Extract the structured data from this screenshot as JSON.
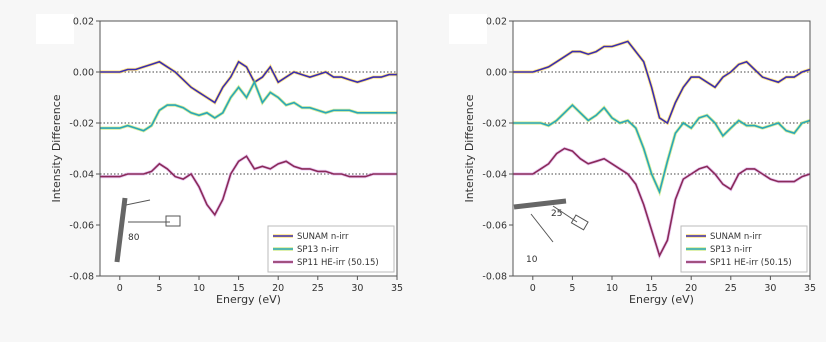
{
  "chart_data": [
    {
      "type": "line",
      "xlabel": "Energy (eV)",
      "ylabel": "Intensity Difference",
      "xlim": [
        -2.5,
        35
      ],
      "ylim": [
        -0.08,
        0.02
      ],
      "xticks": [
        0,
        5,
        10,
        15,
        20,
        25,
        30,
        35
      ],
      "yticks": [
        -0.08,
        -0.06,
        -0.04,
        -0.02,
        0.0,
        0.02
      ],
      "ytick_labels": [
        "-0.08",
        "-0.06",
        "-0.04",
        "-0.02",
        "0.00",
        "0.02"
      ],
      "grid": false,
      "reference_lines": [
        0.0,
        -0.02,
        -0.04
      ],
      "legend_placement": "bottom-right",
      "legend": [
        "SUNAM n-irr",
        "SP13 n-irr",
        "SP11 HE-irr (50.15)"
      ],
      "inset_angle_label": "80",
      "x": [
        -2.5,
        -1,
        0,
        1,
        2,
        3,
        4,
        5,
        6,
        7,
        8,
        9,
        10,
        11,
        12,
        13,
        14,
        15,
        16,
        17,
        18,
        19,
        20,
        21,
        22,
        23,
        24,
        25,
        26,
        27,
        28,
        29,
        30,
        31,
        32,
        33,
        34,
        35
      ],
      "series": [
        {
          "color": "#3a2db0",
          "values": [
            0.0,
            0.0,
            0.0,
            0.001,
            0.001,
            0.002,
            0.003,
            0.004,
            0.002,
            0.0,
            -0.003,
            -0.006,
            -0.008,
            -0.01,
            -0.012,
            -0.006,
            -0.002,
            0.004,
            0.002,
            -0.004,
            -0.002,
            0.002,
            -0.004,
            -0.002,
            0.0,
            -0.001,
            -0.002,
            -0.001,
            0.0,
            -0.002,
            -0.002,
            -0.003,
            -0.004,
            -0.003,
            -0.002,
            -0.002,
            -0.001,
            -0.001
          ]
        },
        {
          "color": "#2aa6b8",
          "values": [
            -0.022,
            -0.022,
            -0.022,
            -0.021,
            -0.022,
            -0.023,
            -0.021,
            -0.015,
            -0.013,
            -0.013,
            -0.014,
            -0.016,
            -0.017,
            -0.016,
            -0.018,
            -0.016,
            -0.01,
            -0.006,
            -0.01,
            -0.004,
            -0.012,
            -0.008,
            -0.01,
            -0.013,
            -0.012,
            -0.014,
            -0.014,
            -0.015,
            -0.016,
            -0.015,
            -0.015,
            -0.015,
            -0.016,
            -0.016,
            -0.016,
            -0.016,
            -0.016,
            -0.016
          ]
        },
        {
          "color": "#8a2a5a",
          "values": [
            -0.041,
            -0.041,
            -0.041,
            -0.04,
            -0.04,
            -0.04,
            -0.039,
            -0.036,
            -0.038,
            -0.041,
            -0.042,
            -0.04,
            -0.045,
            -0.052,
            -0.056,
            -0.05,
            -0.04,
            -0.035,
            -0.033,
            -0.038,
            -0.037,
            -0.038,
            -0.036,
            -0.035,
            -0.037,
            -0.038,
            -0.038,
            -0.039,
            -0.039,
            -0.04,
            -0.04,
            -0.041,
            -0.041,
            -0.041,
            -0.04,
            -0.04,
            -0.04,
            -0.04
          ]
        }
      ]
    },
    {
      "type": "line",
      "xlabel": "Energy (eV)",
      "ylabel": "Intensity Difference",
      "xlim": [
        -2.5,
        35
      ],
      "ylim": [
        -0.08,
        0.02
      ],
      "xticks": [
        0,
        5,
        10,
        15,
        20,
        25,
        30,
        35
      ],
      "yticks": [
        -0.08,
        -0.06,
        -0.04,
        -0.02,
        0.0,
        0.02
      ],
      "ytick_labels": [
        "-0.08",
        "-0.06",
        "-0.04",
        "-0.02",
        "0.00",
        "0.02"
      ],
      "grid": false,
      "reference_lines": [
        0.0,
        -0.02,
        -0.04
      ],
      "legend_placement": "bottom-right",
      "legend": [
        "SUNAM n-irr",
        "SP13 n-irr",
        "SP11 HE-irr (50.15)"
      ],
      "inset_angle_label": "25",
      "inset_extra_label": "10",
      "x": [
        -2.5,
        -1,
        0,
        1,
        2,
        3,
        4,
        5,
        6,
        7,
        8,
        9,
        10,
        11,
        12,
        13,
        14,
        15,
        16,
        17,
        18,
        19,
        20,
        21,
        22,
        23,
        24,
        25,
        26,
        27,
        28,
        29,
        30,
        31,
        32,
        33,
        34,
        35
      ],
      "series": [
        {
          "color": "#3a2db0",
          "values": [
            0.0,
            0.0,
            0.0,
            0.001,
            0.002,
            0.004,
            0.006,
            0.008,
            0.008,
            0.007,
            0.008,
            0.01,
            0.01,
            0.011,
            0.012,
            0.008,
            0.004,
            -0.006,
            -0.018,
            -0.02,
            -0.012,
            -0.006,
            -0.002,
            -0.002,
            -0.004,
            -0.006,
            -0.002,
            0.0,
            0.003,
            0.004,
            0.001,
            -0.002,
            -0.003,
            -0.004,
            -0.002,
            -0.002,
            0.0,
            0.001
          ]
        },
        {
          "color": "#2aa6b8",
          "values": [
            -0.02,
            -0.02,
            -0.02,
            -0.02,
            -0.021,
            -0.019,
            -0.016,
            -0.013,
            -0.016,
            -0.019,
            -0.017,
            -0.014,
            -0.018,
            -0.02,
            -0.019,
            -0.022,
            -0.03,
            -0.04,
            -0.047,
            -0.035,
            -0.024,
            -0.02,
            -0.022,
            -0.018,
            -0.017,
            -0.02,
            -0.025,
            -0.022,
            -0.019,
            -0.021,
            -0.021,
            -0.022,
            -0.021,
            -0.02,
            -0.023,
            -0.024,
            -0.02,
            -0.019
          ]
        },
        {
          "color": "#8a2a5a",
          "values": [
            -0.04,
            -0.04,
            -0.04,
            -0.038,
            -0.036,
            -0.032,
            -0.03,
            -0.031,
            -0.034,
            -0.036,
            -0.035,
            -0.034,
            -0.036,
            -0.038,
            -0.04,
            -0.044,
            -0.052,
            -0.062,
            -0.072,
            -0.066,
            -0.05,
            -0.042,
            -0.04,
            -0.038,
            -0.037,
            -0.04,
            -0.044,
            -0.046,
            -0.04,
            -0.038,
            -0.038,
            -0.04,
            -0.042,
            -0.043,
            -0.043,
            -0.043,
            -0.041,
            -0.04
          ]
        }
      ]
    }
  ]
}
